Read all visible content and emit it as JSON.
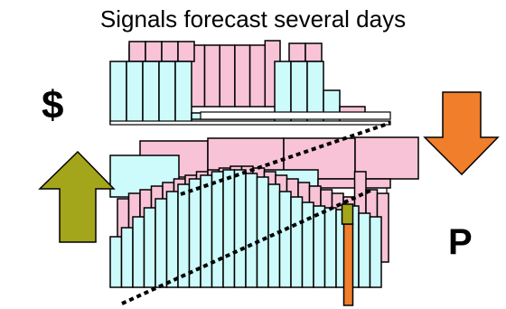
{
  "title": "Signals forecast several days",
  "left_label": "$",
  "right_label": "P",
  "icons": {
    "left_arrow": "up-arrow-icon",
    "right_arrow": "down-arrow-icon"
  },
  "colors": {
    "pink": "#F8C3D6",
    "cyan": "#CDFAFA",
    "olive": "#A3A51B",
    "orange": "#F07E2A",
    "outline": "#000000"
  },
  "bands": {
    "top": {
      "back_bars": 10,
      "front_groups": [
        4,
        4
      ]
    },
    "middle": {
      "back_bars": 4,
      "front_boxes": 2
    },
    "bottom": {
      "back_bars": 24,
      "front_bars": 24,
      "highlight_index": 21
    }
  }
}
